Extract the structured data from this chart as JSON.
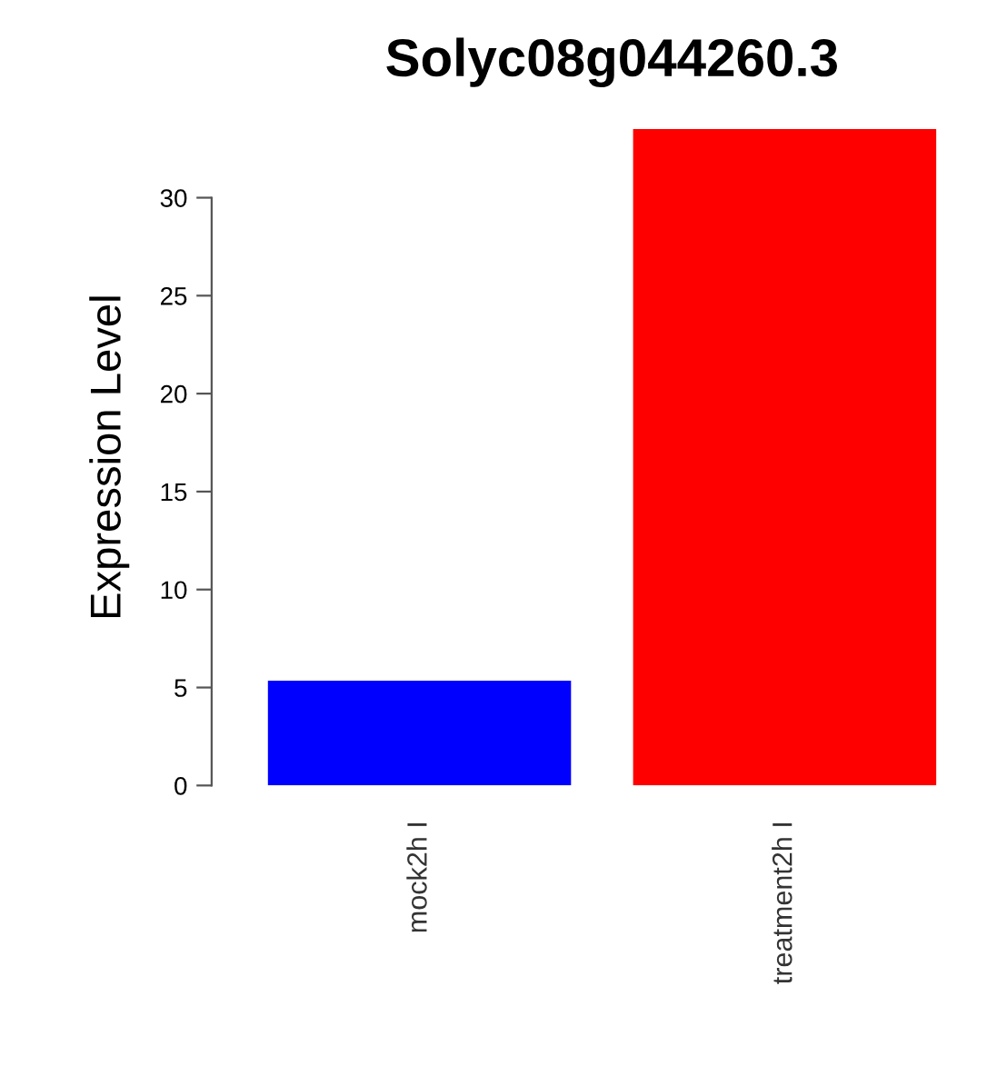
{
  "chart_data": {
    "type": "bar",
    "title": "Solyc08g044260.3",
    "ylabel": "Expression Level",
    "categories": [
      "mock2h I",
      "treatment2h I"
    ],
    "values": [
      5.35,
      33.5
    ],
    "colors": [
      "#0000ff",
      "#ff0000"
    ],
    "ylim": [
      0,
      33.5
    ],
    "yticks": [
      0,
      5,
      10,
      15,
      20,
      25,
      30
    ],
    "grid": false,
    "legend": false
  }
}
